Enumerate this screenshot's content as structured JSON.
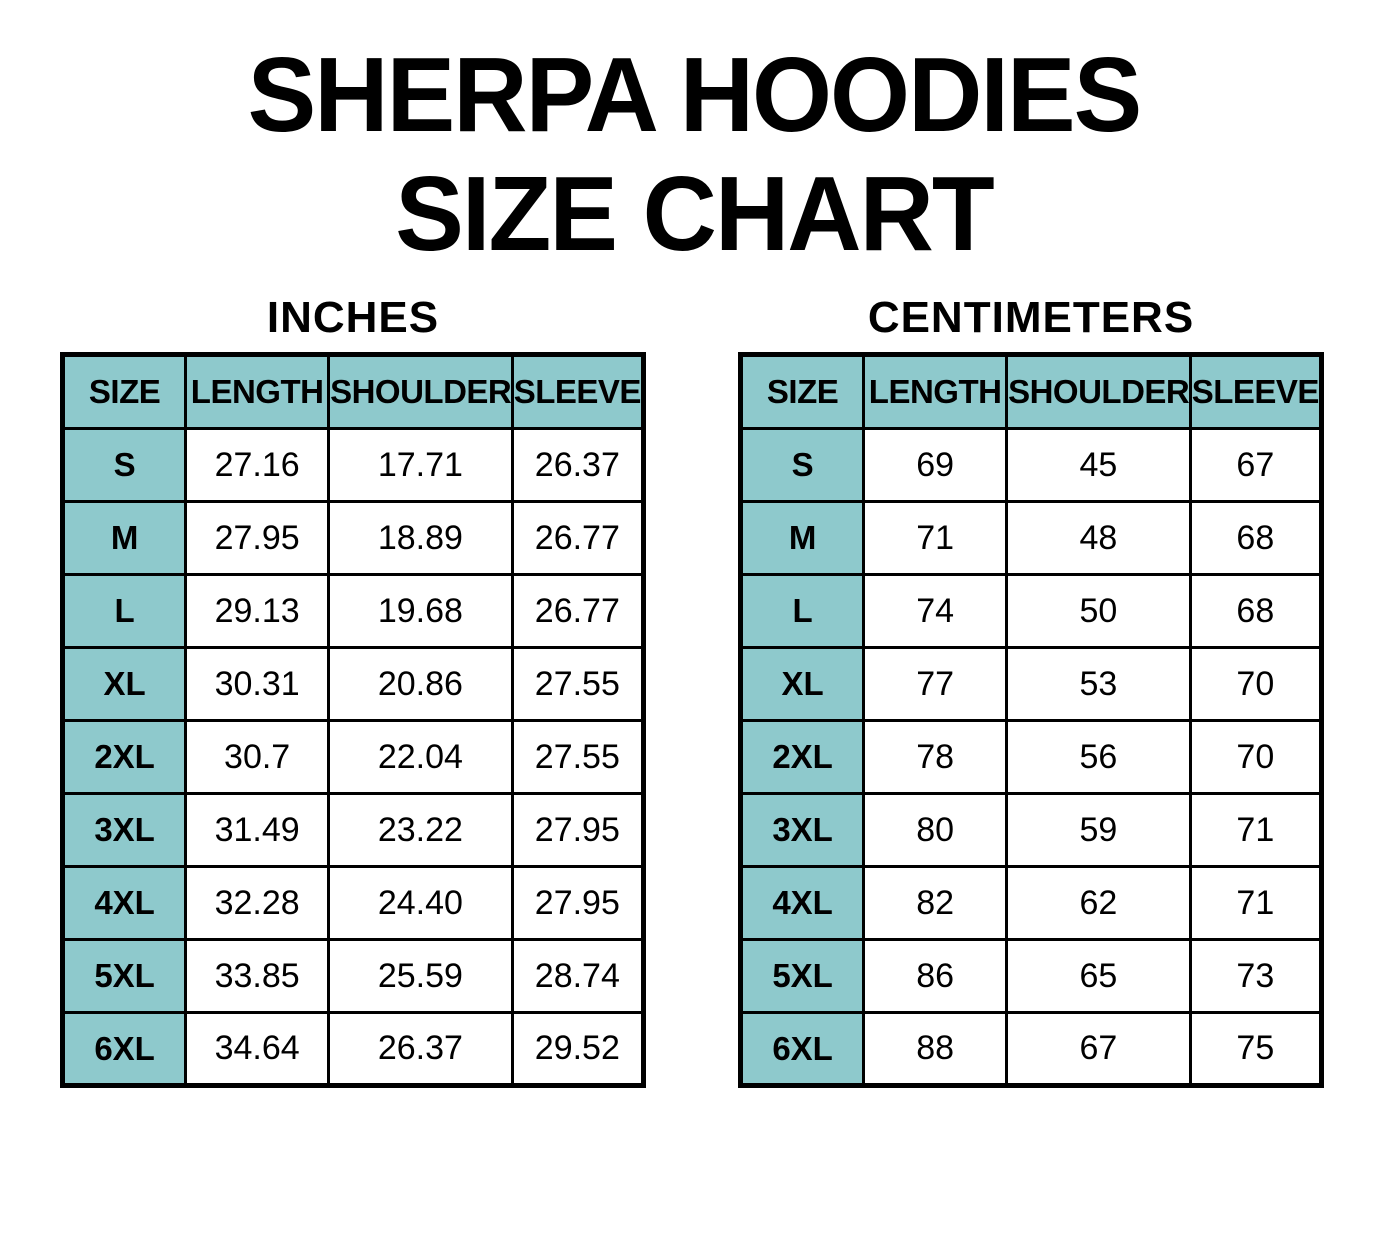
{
  "page": {
    "title_line1": "SHERPA HOODIES",
    "title_line2": "SIZE CHART"
  },
  "colors": {
    "header_teal": "#8ec9cc",
    "border": "#000000",
    "background": "#ffffff",
    "text": "#000000"
  },
  "tables": [
    {
      "unit_label": "INCHES",
      "headers": [
        "SIZE",
        "LENGTH",
        "SHOULDER",
        "SLEEVE"
      ],
      "rows": [
        [
          "S",
          "27.16",
          "17.71",
          "26.37"
        ],
        [
          "M",
          "27.95",
          "18.89",
          "26.77"
        ],
        [
          "L",
          "29.13",
          "19.68",
          "26.77"
        ],
        [
          "XL",
          "30.31",
          "20.86",
          "27.55"
        ],
        [
          "2XL",
          "30.7",
          "22.04",
          "27.55"
        ],
        [
          "3XL",
          "31.49",
          "23.22",
          "27.95"
        ],
        [
          "4XL",
          "32.28",
          "24.40",
          "27.95"
        ],
        [
          "5XL",
          "33.85",
          "25.59",
          "28.74"
        ],
        [
          "6XL",
          "34.64",
          "26.37",
          "29.52"
        ]
      ]
    },
    {
      "unit_label": "CENTIMETERS",
      "headers": [
        "SIZE",
        "LENGTH",
        "SHOULDER",
        "SLEEVE"
      ],
      "rows": [
        [
          "S",
          "69",
          "45",
          "67"
        ],
        [
          "M",
          "71",
          "48",
          "68"
        ],
        [
          "L",
          "74",
          "50",
          "68"
        ],
        [
          "XL",
          "77",
          "53",
          "70"
        ],
        [
          "2XL",
          "78",
          "56",
          "70"
        ],
        [
          "3XL",
          "80",
          "59",
          "71"
        ],
        [
          "4XL",
          "82",
          "62",
          "71"
        ],
        [
          "5XL",
          "86",
          "65",
          "73"
        ],
        [
          "6XL",
          "88",
          "67",
          "75"
        ]
      ]
    }
  ],
  "chart_data": [
    {
      "type": "table",
      "title": "INCHES",
      "columns": [
        "SIZE",
        "LENGTH",
        "SHOULDER",
        "SLEEVE"
      ],
      "rows": [
        [
          "S",
          27.16,
          17.71,
          26.37
        ],
        [
          "M",
          27.95,
          18.89,
          26.77
        ],
        [
          "L",
          29.13,
          19.68,
          26.77
        ],
        [
          "XL",
          30.31,
          20.86,
          27.55
        ],
        [
          "2XL",
          30.7,
          22.04,
          27.55
        ],
        [
          "3XL",
          31.49,
          23.22,
          27.95
        ],
        [
          "4XL",
          32.28,
          24.4,
          27.95
        ],
        [
          "5XL",
          33.85,
          25.59,
          28.74
        ],
        [
          "6XL",
          34.64,
          26.37,
          29.52
        ]
      ]
    },
    {
      "type": "table",
      "title": "CENTIMETERS",
      "columns": [
        "SIZE",
        "LENGTH",
        "SHOULDER",
        "SLEEVE"
      ],
      "rows": [
        [
          "S",
          69,
          45,
          67
        ],
        [
          "M",
          71,
          48,
          68
        ],
        [
          "L",
          74,
          50,
          68
        ],
        [
          "XL",
          77,
          53,
          70
        ],
        [
          "2XL",
          78,
          56,
          70
        ],
        [
          "3XL",
          80,
          59,
          71
        ],
        [
          "4XL",
          82,
          62,
          71
        ],
        [
          "5XL",
          86,
          65,
          73
        ],
        [
          "6XL",
          88,
          67,
          75
        ]
      ]
    }
  ]
}
